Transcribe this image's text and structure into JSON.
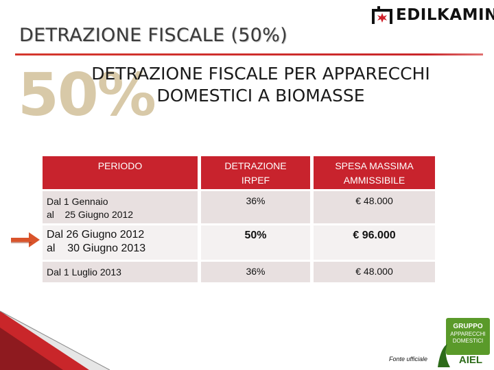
{
  "header": {
    "title": "DETRAZIONE FISCALE (50%)",
    "logo_text": "EDILKAMIN"
  },
  "hero": {
    "big_percent": "50%",
    "heading_line1": "DETRAZIONE FISCALE PER APPARECCHI",
    "heading_line2": "DOMESTICI A BIOMASSE"
  },
  "table": {
    "columns": [
      "PERIODO",
      "DETRAZIONE IRPEF",
      "SPESA MASSIMA AMMISSIBILE"
    ],
    "rows": [
      {
        "period_line1": "Dal 1 Gennaio",
        "period_line2": "al    25 Giugno 2012",
        "irpef": "36%",
        "spesa": "€ 48.000"
      },
      {
        "period_line1": "Dal 26 Giugno 2012",
        "period_line2": "al    30 Giugno 2013",
        "irpef": "50%",
        "spesa": "€ 96.000"
      },
      {
        "period_line1": "Dal 1 Luglio 2013",
        "period_line2": "",
        "irpef": "36%",
        "spesa": "€ 48.000"
      }
    ]
  },
  "footer": {
    "aiel_lines": [
      "GRUPPO",
      "APPARECCHI",
      "DOMESTICI",
      "AIEL"
    ],
    "source_note": "Fonte ufficiale"
  },
  "colors": {
    "accent_red": "#c8232d",
    "percent_beige": "#d8c9a8",
    "arrow_orange": "#d9542b",
    "aiel_green": "#5a9a2a"
  },
  "icons": [
    "medilkamin-logo",
    "arrow-right-icon",
    "aiel-logo"
  ]
}
